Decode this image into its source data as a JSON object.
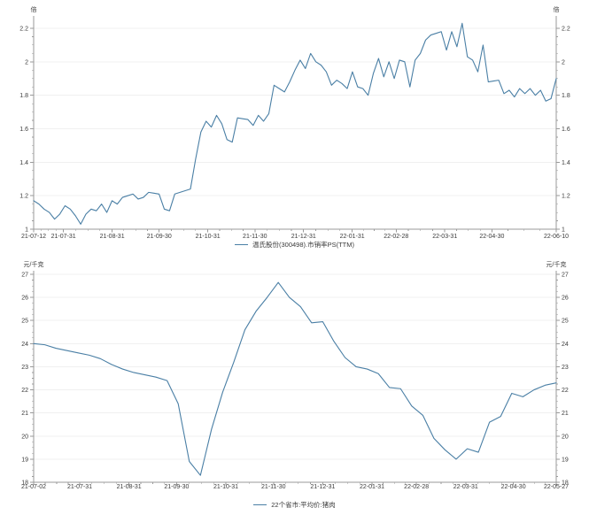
{
  "page": {
    "background": "#ffffff",
    "text_color": "#3a3a3a"
  },
  "chart_data": [
    {
      "type": "line",
      "title": "",
      "legend": "温氏股份(300498).市销率PS(TTM)",
      "unit_left": "倍",
      "unit_right": "倍",
      "line_color": "#4a7fa5",
      "grid": true,
      "legend_position": "bottom-center",
      "ylim": [
        1,
        2.2
      ],
      "y_tick_labels": [
        "2.2",
        "2",
        "1.8",
        "1.6",
        "1.4",
        "1.2",
        "1"
      ],
      "x_tick_labels": [
        "21-07-12",
        "21-07-31",
        "21-08-31",
        "21-09-30",
        "21-10-31",
        "21-11-30",
        "21-12-31",
        "22-01-31",
        "22-02-28",
        "22-03-31",
        "22-04-30",
        "22-06-10"
      ],
      "values": [
        1.17,
        1.15,
        1.12,
        1.1,
        1.06,
        1.09,
        1.14,
        1.12,
        1.08,
        1.03,
        1.09,
        1.12,
        1.11,
        1.15,
        1.1,
        1.17,
        1.15,
        1.19,
        1.2,
        1.21,
        1.18,
        1.19,
        1.22,
        1.215,
        1.21,
        1.12,
        1.11,
        1.21,
        1.22,
        1.23,
        1.24,
        1.42,
        1.58,
        1.645,
        1.61,
        1.68,
        1.63,
        1.535,
        1.52,
        1.665,
        1.66,
        1.655,
        1.62,
        1.68,
        1.645,
        1.69,
        1.86,
        1.84,
        1.82,
        1.88,
        1.95,
        2.01,
        1.96,
        2.05,
        2.0,
        1.98,
        1.94,
        1.86,
        1.89,
        1.87,
        1.84,
        1.94,
        1.85,
        1.84,
        1.8,
        1.93,
        2.02,
        1.91,
        2.0,
        1.9,
        2.01,
        2.0,
        1.85,
        2.01,
        2.05,
        2.13,
        2.16,
        2.17,
        2.18,
        2.07,
        2.18,
        2.09,
        2.23,
        2.03,
        2.01,
        1.94,
        2.1,
        1.88,
        1.885,
        1.89,
        1.81,
        1.83,
        1.79,
        1.84,
        1.81,
        1.84,
        1.8,
        1.83,
        1.765,
        1.78,
        1.9
      ]
    },
    {
      "type": "line",
      "title": "",
      "legend": "22个省市:平均价:猪肉",
      "unit_left": "元/千克",
      "unit_right": "元/千克",
      "line_color": "#4a7fa5",
      "grid": true,
      "legend_position": "bottom-center",
      "ylim": [
        18,
        27
      ],
      "y_tick_labels": [
        "27",
        "26",
        "25",
        "24",
        "23",
        "22",
        "21",
        "20",
        "19",
        "18"
      ],
      "x_tick_labels": [
        "21-07-02",
        "21-07-31",
        "21-08-31",
        "21-09-30",
        "21-10-31",
        "21-11-30",
        "21-12-31",
        "22-01-31",
        "22-02-28",
        "22-03-31",
        "22-04-30",
        "22-05-27"
      ],
      "values": [
        24.0,
        23.95,
        23.8,
        23.7,
        23.6,
        23.5,
        23.35,
        23.1,
        22.9,
        22.75,
        22.65,
        22.55,
        22.4,
        21.4,
        18.9,
        18.3,
        20.3,
        21.9,
        23.2,
        24.6,
        25.4,
        26.0,
        26.65,
        26.0,
        25.6,
        24.9,
        24.95,
        24.1,
        23.4,
        23.0,
        22.9,
        22.7,
        22.1,
        22.05,
        21.3,
        20.9,
        19.9,
        19.4,
        19.0,
        19.45,
        19.3,
        20.6,
        20.85,
        21.85,
        21.7,
        22.0,
        22.2,
        22.3
      ]
    }
  ]
}
